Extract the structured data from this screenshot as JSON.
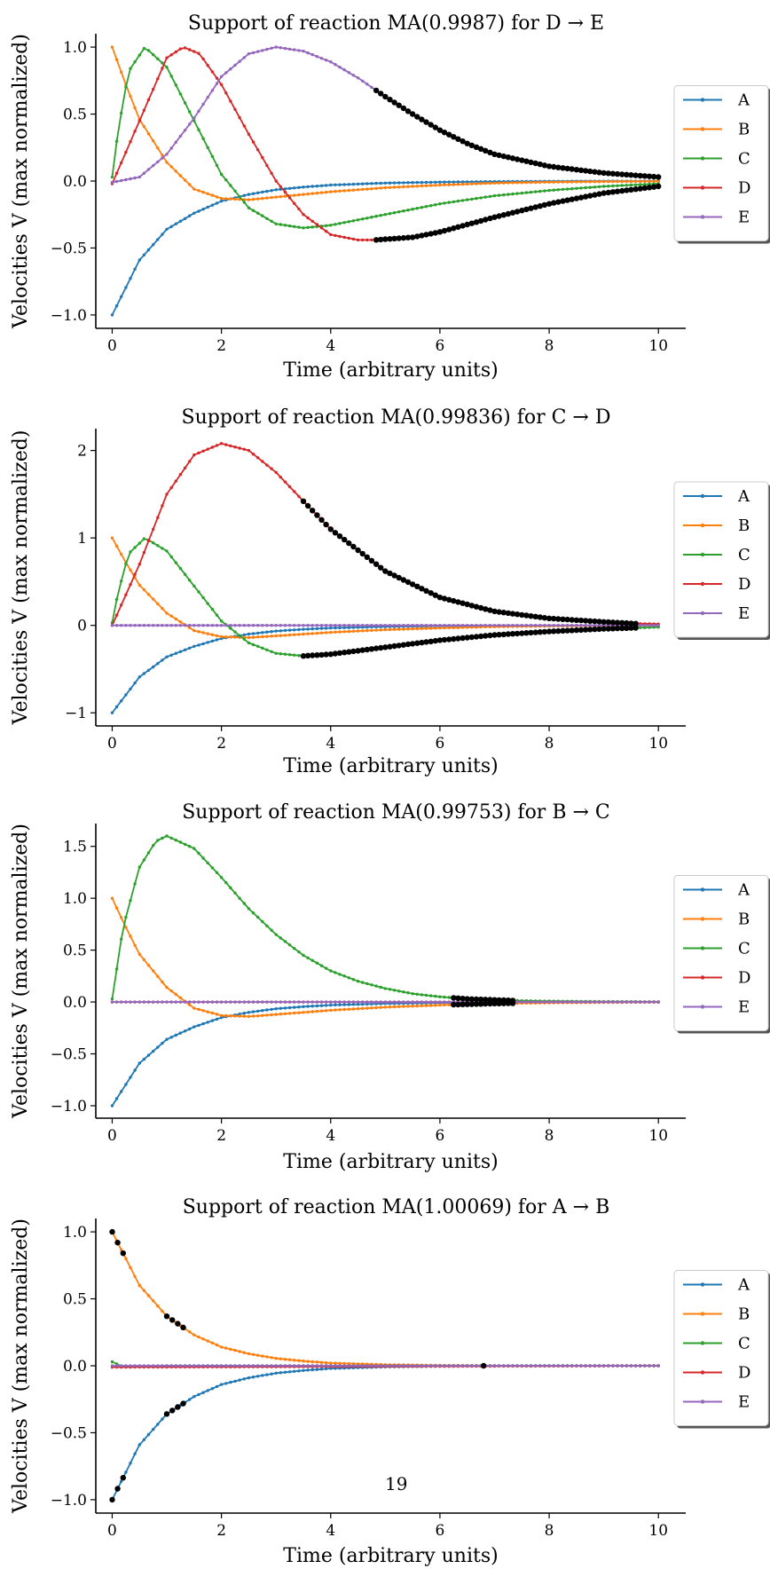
{
  "page_number": "19",
  "chart_data": [
    {
      "type": "line",
      "title": "Support of reaction MA(0.9987) for D → E",
      "xlabel": "Time (arbitrary units)",
      "ylabel": "Velocities V (max normalized)",
      "xlim": [
        -0.3,
        10.5
      ],
      "ylim": [
        -1.1,
        1.1
      ],
      "xticks": [
        0,
        2,
        4,
        6,
        8,
        10
      ],
      "yticks": [
        -1.0,
        -0.5,
        0.0,
        0.5,
        1.0
      ],
      "ytick_labels": [
        "−1.0",
        "−0.5",
        "0.0",
        "0.5",
        "1.0"
      ],
      "legend": {
        "placement": "outside-right",
        "entries": [
          "A",
          "B",
          "C",
          "D",
          "E"
        ]
      },
      "series": [
        {
          "name": "A",
          "color": "#1f77b4",
          "x": [
            0,
            0.5,
            1,
            1.5,
            2,
            2.5,
            3,
            3.5,
            4,
            5,
            6,
            7,
            8,
            10
          ],
          "values": [
            -1.0,
            -0.59,
            -0.36,
            -0.24,
            -0.15,
            -0.1,
            -0.065,
            -0.045,
            -0.03,
            -0.015,
            -0.008,
            -0.004,
            -0.002,
            0.0
          ]
        },
        {
          "name": "B",
          "color": "#ff7f0e",
          "x": [
            0,
            0.25,
            0.5,
            1,
            1.5,
            2,
            2.5,
            3,
            3.5,
            4,
            5,
            6,
            7,
            8,
            9,
            10
          ],
          "values": [
            1.0,
            0.72,
            0.46,
            0.14,
            -0.06,
            -0.13,
            -0.14,
            -0.12,
            -0.1,
            -0.08,
            -0.05,
            -0.03,
            -0.015,
            -0.008,
            -0.004,
            -0.002
          ]
        },
        {
          "name": "C",
          "color": "#2ca02c",
          "x": [
            0,
            0.1,
            0.3,
            0.6,
            1,
            1.5,
            2,
            2.5,
            3,
            3.5,
            4,
            4.5,
            5,
            6,
            7,
            8,
            9,
            10
          ],
          "values": [
            0.03,
            0.35,
            0.82,
            1.0,
            0.85,
            0.45,
            0.05,
            -0.2,
            -0.32,
            -0.35,
            -0.33,
            -0.29,
            -0.25,
            -0.17,
            -0.11,
            -0.07,
            -0.04,
            -0.02
          ]
        },
        {
          "name": "D",
          "color": "#d62728",
          "x": [
            0,
            0.5,
            1,
            1.3,
            1.6,
            2,
            2.5,
            3,
            3.5,
            4,
            4.5,
            4.8,
            5.5,
            6,
            7,
            8,
            9,
            10
          ],
          "values": [
            -0.02,
            0.45,
            0.92,
            1.0,
            0.95,
            0.72,
            0.35,
            0.0,
            -0.25,
            -0.4,
            -0.44,
            -0.44,
            -0.42,
            -0.38,
            -0.27,
            -0.17,
            -0.09,
            -0.04
          ]
        },
        {
          "name": "E",
          "color": "#9467bd",
          "x": [
            0,
            0.5,
            1,
            1.5,
            2,
            2.5,
            3,
            3.5,
            4,
            4.5,
            5,
            5.5,
            6,
            6.5,
            7,
            8,
            9,
            10
          ],
          "values": [
            -0.01,
            0.03,
            0.2,
            0.47,
            0.78,
            0.95,
            1.0,
            0.97,
            0.89,
            0.77,
            0.63,
            0.5,
            0.38,
            0.28,
            0.2,
            0.11,
            0.06,
            0.03
          ]
        }
      ],
      "support": [
        {
          "series": "D",
          "x_start": 4.8,
          "x_end": 10
        },
        {
          "series": "E",
          "x_start": 4.8,
          "x_end": 10
        }
      ]
    },
    {
      "type": "line",
      "title": "Support of reaction MA(0.99836) for C → D",
      "xlabel": "Time (arbitrary units)",
      "ylabel": "Velocities V (max normalized)",
      "xlim": [
        -0.3,
        10.5
      ],
      "ylim": [
        -1.15,
        2.25
      ],
      "xticks": [
        0,
        2,
        4,
        6,
        8,
        10
      ],
      "yticks": [
        -1,
        0,
        1,
        2
      ],
      "ytick_labels": [
        "−1",
        "0",
        "1",
        "2"
      ],
      "legend": {
        "placement": "outside-right",
        "entries": [
          "A",
          "B",
          "C",
          "D",
          "E"
        ]
      },
      "series": [
        {
          "name": "A",
          "color": "#1f77b4",
          "x": [
            0,
            0.5,
            1,
            1.5,
            2,
            2.5,
            3,
            3.5,
            4,
            5,
            6,
            7,
            8,
            10
          ],
          "values": [
            -1.0,
            -0.59,
            -0.36,
            -0.24,
            -0.15,
            -0.1,
            -0.065,
            -0.045,
            -0.03,
            -0.015,
            -0.008,
            -0.004,
            -0.002,
            0.0
          ]
        },
        {
          "name": "B",
          "color": "#ff7f0e",
          "x": [
            0,
            0.25,
            0.5,
            1,
            1.5,
            2,
            2.5,
            3,
            3.5,
            4,
            5,
            6,
            7,
            8,
            9,
            10
          ],
          "values": [
            1.0,
            0.72,
            0.46,
            0.14,
            -0.06,
            -0.13,
            -0.14,
            -0.12,
            -0.1,
            -0.08,
            -0.05,
            -0.03,
            -0.015,
            -0.008,
            -0.004,
            -0.002
          ]
        },
        {
          "name": "C",
          "color": "#2ca02c",
          "x": [
            0,
            0.1,
            0.3,
            0.6,
            1,
            1.5,
            2,
            2.5,
            3,
            3.5,
            4,
            5,
            6,
            7,
            8,
            9,
            10
          ],
          "values": [
            0.03,
            0.35,
            0.82,
            1.0,
            0.85,
            0.45,
            0.05,
            -0.2,
            -0.32,
            -0.35,
            -0.33,
            -0.25,
            -0.17,
            -0.11,
            -0.07,
            -0.04,
            -0.02
          ]
        },
        {
          "name": "D",
          "color": "#d62728",
          "x": [
            0,
            0.5,
            1,
            1.5,
            2,
            2.5,
            3,
            3.5,
            4,
            5,
            6,
            7,
            8,
            9,
            9.6,
            10
          ],
          "values": [
            0.0,
            0.7,
            1.5,
            1.95,
            2.08,
            2.0,
            1.75,
            1.42,
            1.1,
            0.62,
            0.32,
            0.16,
            0.08,
            0.04,
            0.02,
            0.015
          ]
        },
        {
          "name": "E",
          "color": "#9467bd",
          "x": [
            0,
            10
          ],
          "values": [
            0.0,
            0.0
          ]
        }
      ],
      "support": [
        {
          "series": "C",
          "x_start": 3.5,
          "x_end": 9.6
        },
        {
          "series": "D",
          "x_start": 3.5,
          "x_end": 9.6
        }
      ]
    },
    {
      "type": "line",
      "title": "Support of reaction MA(0.99753) for B → C",
      "xlabel": "Time (arbitrary units)",
      "ylabel": "Velocities V (max normalized)",
      "xlim": [
        -0.3,
        10.5
      ],
      "ylim": [
        -1.12,
        1.72
      ],
      "xticks": [
        0,
        2,
        4,
        6,
        8,
        10
      ],
      "yticks": [
        -1.0,
        -0.5,
        0.0,
        0.5,
        1.0,
        1.5
      ],
      "ytick_labels": [
        "−1.0",
        "−0.5",
        "0.0",
        "0.5",
        "1.0",
        "1.5"
      ],
      "legend": {
        "placement": "outside-right",
        "entries": [
          "A",
          "B",
          "C",
          "D",
          "E"
        ]
      },
      "series": [
        {
          "name": "A",
          "color": "#1f77b4",
          "x": [
            0,
            0.5,
            1,
            1.5,
            2,
            2.5,
            3,
            3.5,
            4,
            5,
            6,
            7,
            8,
            10
          ],
          "values": [
            -1.0,
            -0.59,
            -0.36,
            -0.24,
            -0.15,
            -0.1,
            -0.065,
            -0.045,
            -0.03,
            -0.015,
            -0.008,
            -0.004,
            -0.002,
            0.0
          ]
        },
        {
          "name": "B",
          "color": "#ff7f0e",
          "x": [
            0,
            0.25,
            0.5,
            1,
            1.5,
            2,
            2.5,
            3,
            3.5,
            4,
            5,
            6,
            7,
            8,
            9,
            10
          ],
          "values": [
            1.0,
            0.72,
            0.46,
            0.14,
            -0.06,
            -0.13,
            -0.14,
            -0.12,
            -0.1,
            -0.08,
            -0.05,
            -0.03,
            -0.015,
            -0.008,
            -0.004,
            -0.002
          ]
        },
        {
          "name": "C",
          "color": "#2ca02c",
          "x": [
            0,
            0.2,
            0.5,
            0.8,
            1,
            1.5,
            2,
            2.5,
            3,
            3.5,
            4,
            4.5,
            5,
            5.5,
            6,
            6.5,
            7,
            7.5,
            8,
            9,
            10
          ],
          "values": [
            0.03,
            0.72,
            1.3,
            1.55,
            1.6,
            1.48,
            1.2,
            0.9,
            0.65,
            0.45,
            0.3,
            0.2,
            0.13,
            0.08,
            0.05,
            0.03,
            0.02,
            0.012,
            0.008,
            0.004,
            0.002
          ]
        },
        {
          "name": "D",
          "color": "#d62728",
          "x": [
            0,
            10
          ],
          "values": [
            0.0,
            0.0
          ]
        },
        {
          "name": "E",
          "color": "#9467bd",
          "x": [
            0,
            10
          ],
          "values": [
            0.0,
            0.0
          ]
        }
      ],
      "support": [
        {
          "series": "C",
          "x_start": 6.2,
          "x_end": 7.4
        },
        {
          "series": "B",
          "x_start": 6.2,
          "x_end": 7.4
        }
      ]
    },
    {
      "type": "line",
      "title": "Support of reaction MA(1.00069) for A → B",
      "xlabel": "Time (arbitrary units)",
      "ylabel": "Velocities V (max normalized)",
      "xlim": [
        -0.3,
        10.5
      ],
      "ylim": [
        -1.1,
        1.1
      ],
      "xticks": [
        0,
        2,
        4,
        6,
        8,
        10
      ],
      "yticks": [
        -1.0,
        -0.5,
        0.0,
        0.5,
        1.0
      ],
      "ytick_labels": [
        "−1.0",
        "−0.5",
        "0.0",
        "0.5",
        "1.0"
      ],
      "legend": {
        "placement": "outside-right",
        "entries": [
          "A",
          "B",
          "C",
          "D",
          "E"
        ]
      },
      "series": [
        {
          "name": "A",
          "color": "#1f77b4",
          "x": [
            0,
            0.5,
            1,
            1.5,
            2,
            2.5,
            3,
            3.5,
            4,
            5,
            6,
            7,
            8,
            10
          ],
          "values": [
            -1.0,
            -0.59,
            -0.36,
            -0.23,
            -0.14,
            -0.09,
            -0.055,
            -0.035,
            -0.02,
            -0.008,
            -0.003,
            -0.001,
            0.0,
            0.0
          ]
        },
        {
          "name": "B",
          "color": "#ff7f0e",
          "x": [
            0,
            0.5,
            1,
            1.5,
            2,
            2.5,
            3,
            3.5,
            4,
            5,
            6,
            7,
            8,
            10
          ],
          "values": [
            1.0,
            0.6,
            0.37,
            0.23,
            0.14,
            0.09,
            0.055,
            0.035,
            0.02,
            0.008,
            0.003,
            0.001,
            0.0,
            0.0
          ]
        },
        {
          "name": "C",
          "color": "#2ca02c",
          "x": [
            0,
            0.2,
            0.5,
            1,
            10
          ],
          "values": [
            0.03,
            -0.01,
            -0.005,
            0.0,
            0.0
          ]
        },
        {
          "name": "D",
          "color": "#d62728",
          "x": [
            0,
            10
          ],
          "values": [
            -0.01,
            0.0
          ]
        },
        {
          "name": "E",
          "color": "#9467bd",
          "x": [
            0,
            10
          ],
          "values": [
            0.0,
            0.0
          ]
        }
      ],
      "support_points": [
        {
          "series": "A",
          "x": [
            0,
            0.1,
            0.2,
            1.0,
            1.1,
            1.2,
            1.3
          ]
        },
        {
          "series": "B",
          "x": [
            0,
            0.1,
            0.2,
            1.0,
            1.1,
            1.2,
            1.3
          ]
        },
        {
          "series": "E",
          "x": [
            6.8
          ]
        }
      ]
    }
  ]
}
